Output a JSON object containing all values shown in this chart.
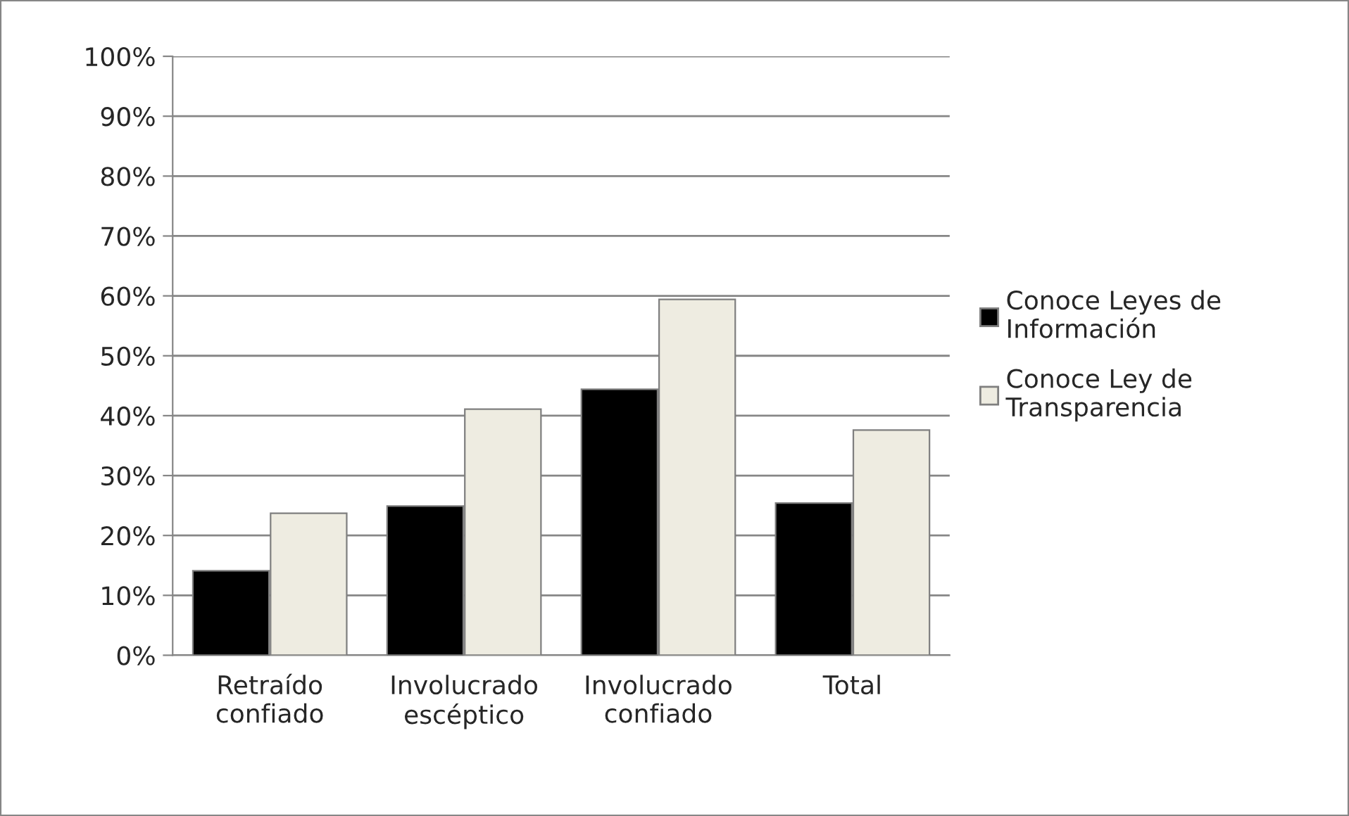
{
  "chart_data": {
    "type": "bar",
    "categories": [
      "Retraído\nconfiado",
      "Involucrado\nescéptico",
      "Involucrado\nconfiado",
      "Total"
    ],
    "series": [
      {
        "name": "Conoce Leyes de\nInformación",
        "color": "#000000",
        "values": [
          14.1,
          24.9,
          44.4,
          25.4
        ]
      },
      {
        "name": "Conoce Ley de\nTransparencia",
        "color": "#eeece1",
        "values": [
          23.7,
          41.1,
          59.4,
          37.6
        ]
      }
    ],
    "ylim": [
      0,
      100
    ],
    "yticks": [
      {
        "value": 0,
        "label": "0%"
      },
      {
        "value": 10,
        "label": "10%"
      },
      {
        "value": 20,
        "label": "20%"
      },
      {
        "value": 30,
        "label": "30%"
      },
      {
        "value": 40,
        "label": "40%"
      },
      {
        "value": 50,
        "label": "50%"
      },
      {
        "value": 60,
        "label": "60%"
      },
      {
        "value": 70,
        "label": "70%"
      },
      {
        "value": 80,
        "label": "80%"
      },
      {
        "value": 90,
        "label": "90%"
      },
      {
        "value": 100,
        "label": "100%"
      }
    ],
    "grid": "y",
    "legend": "right"
  }
}
